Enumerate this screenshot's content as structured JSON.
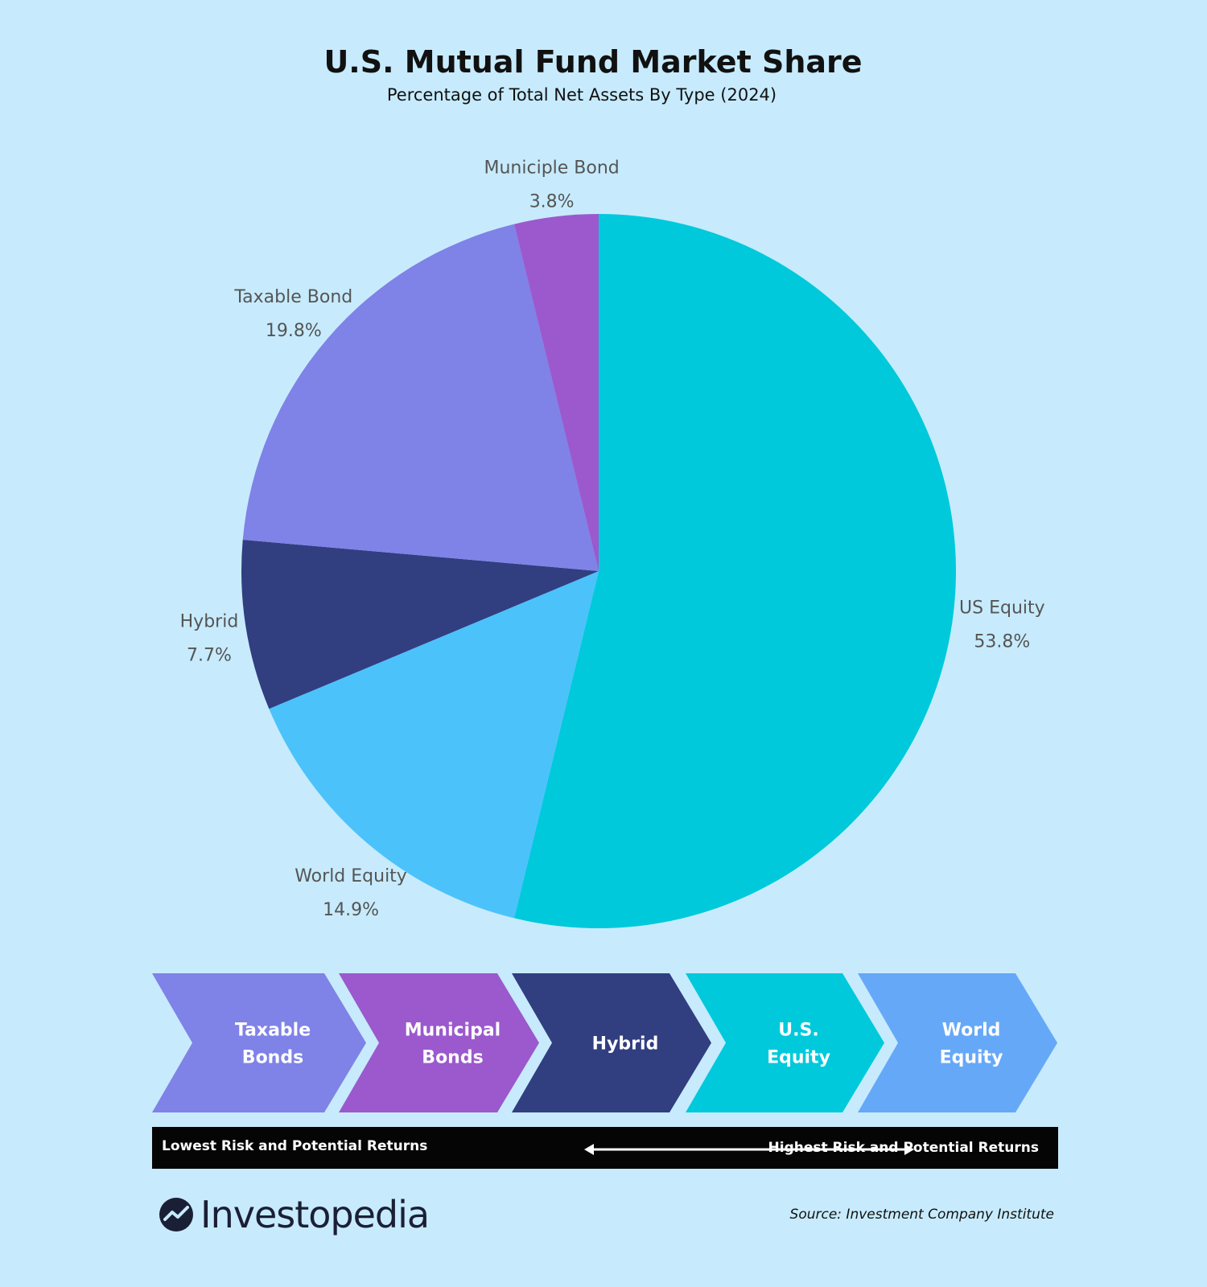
{
  "chart_data": {
    "type": "pie",
    "title": "U.S. Mutual Fund Market Share",
    "subtitle": "Percentage of Total Net Assets By Type (2024)",
    "slices": [
      {
        "name": "US Equity",
        "value": 53.8,
        "label": "53.8%",
        "color": "#00c9dc"
      },
      {
        "name": "World Equity",
        "value": 14.9,
        "label": "14.9%",
        "color": "#4cc2fb"
      },
      {
        "name": "Hybrid",
        "value": 7.7,
        "label": "7.7%",
        "color": "#313e80"
      },
      {
        "name": "Taxable Bond",
        "value": 19.8,
        "label": "19.8%",
        "color": "#7f82e7"
      },
      {
        "name": "Municiple Bond",
        "value": 3.8,
        "label": "3.8%",
        "color": "#9b59cd"
      }
    ]
  },
  "risk_scale": {
    "steps": [
      {
        "lines": [
          "Taxable",
          "Bonds"
        ],
        "color": "#7f82e7"
      },
      {
        "lines": [
          "Municipal",
          "Bonds"
        ],
        "color": "#9b59cd"
      },
      {
        "lines": [
          "Hybrid"
        ],
        "color": "#313e80"
      },
      {
        "lines": [
          "U.S.",
          "Equity"
        ],
        "color": "#00c9dc"
      },
      {
        "lines": [
          "World",
          "Equity"
        ],
        "color": "#66a8f8"
      }
    ],
    "low_label": "Lowest Risk and Potential Returns",
    "high_label": "Highest Risk and Potential Returns"
  },
  "footer": {
    "brand": "Investopedia",
    "source": "Source: Investment Company Institute"
  },
  "colors": {
    "background": "#c7ebfd",
    "label_text": "#555555",
    "risk_bar": "#050505"
  }
}
